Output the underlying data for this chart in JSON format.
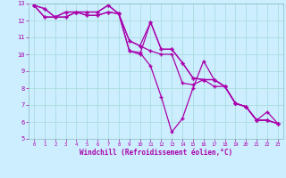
{
  "xlabel": "Windchill (Refroidissement éolien,°C)",
  "ylabel": "",
  "bg_color": "#cceeff",
  "grid_color": "#aadddd",
  "line_color": "#aa00aa",
  "xlim": [
    -0.5,
    23.5
  ],
  "ylim": [
    5,
    13
  ],
  "xticks": [
    0,
    1,
    2,
    3,
    4,
    5,
    6,
    7,
    8,
    9,
    10,
    11,
    12,
    13,
    14,
    15,
    16,
    17,
    18,
    19,
    20,
    21,
    22,
    23
  ],
  "yticks": [
    5,
    6,
    7,
    8,
    9,
    10,
    11,
    12,
    13
  ],
  "series": [
    [
      12.9,
      12.7,
      12.2,
      12.5,
      12.5,
      12.5,
      12.5,
      12.9,
      12.4,
      10.2,
      10.1,
      9.3,
      7.5,
      5.4,
      6.2,
      8.0,
      9.6,
      8.5,
      8.1,
      7.1,
      6.9,
      6.1,
      6.1,
      5.9
    ],
    [
      12.9,
      12.7,
      12.2,
      12.5,
      12.5,
      12.5,
      12.5,
      12.9,
      12.4,
      10.2,
      10.0,
      11.9,
      10.3,
      10.3,
      9.5,
      8.6,
      8.5,
      8.5,
      8.1,
      7.1,
      6.9,
      6.1,
      6.1,
      5.9
    ],
    [
      12.9,
      12.2,
      12.2,
      12.2,
      12.5,
      12.3,
      12.3,
      12.5,
      12.4,
      10.8,
      10.5,
      10.2,
      10.0,
      10.0,
      8.3,
      8.2,
      8.5,
      8.1,
      8.1,
      7.1,
      6.9,
      6.1,
      6.6,
      5.9
    ],
    [
      12.9,
      12.2,
      12.2,
      12.2,
      12.5,
      12.3,
      12.3,
      12.5,
      12.4,
      10.8,
      10.5,
      11.9,
      10.3,
      10.3,
      9.5,
      8.6,
      8.5,
      8.5,
      8.1,
      7.1,
      6.9,
      6.1,
      6.1,
      5.9
    ]
  ]
}
